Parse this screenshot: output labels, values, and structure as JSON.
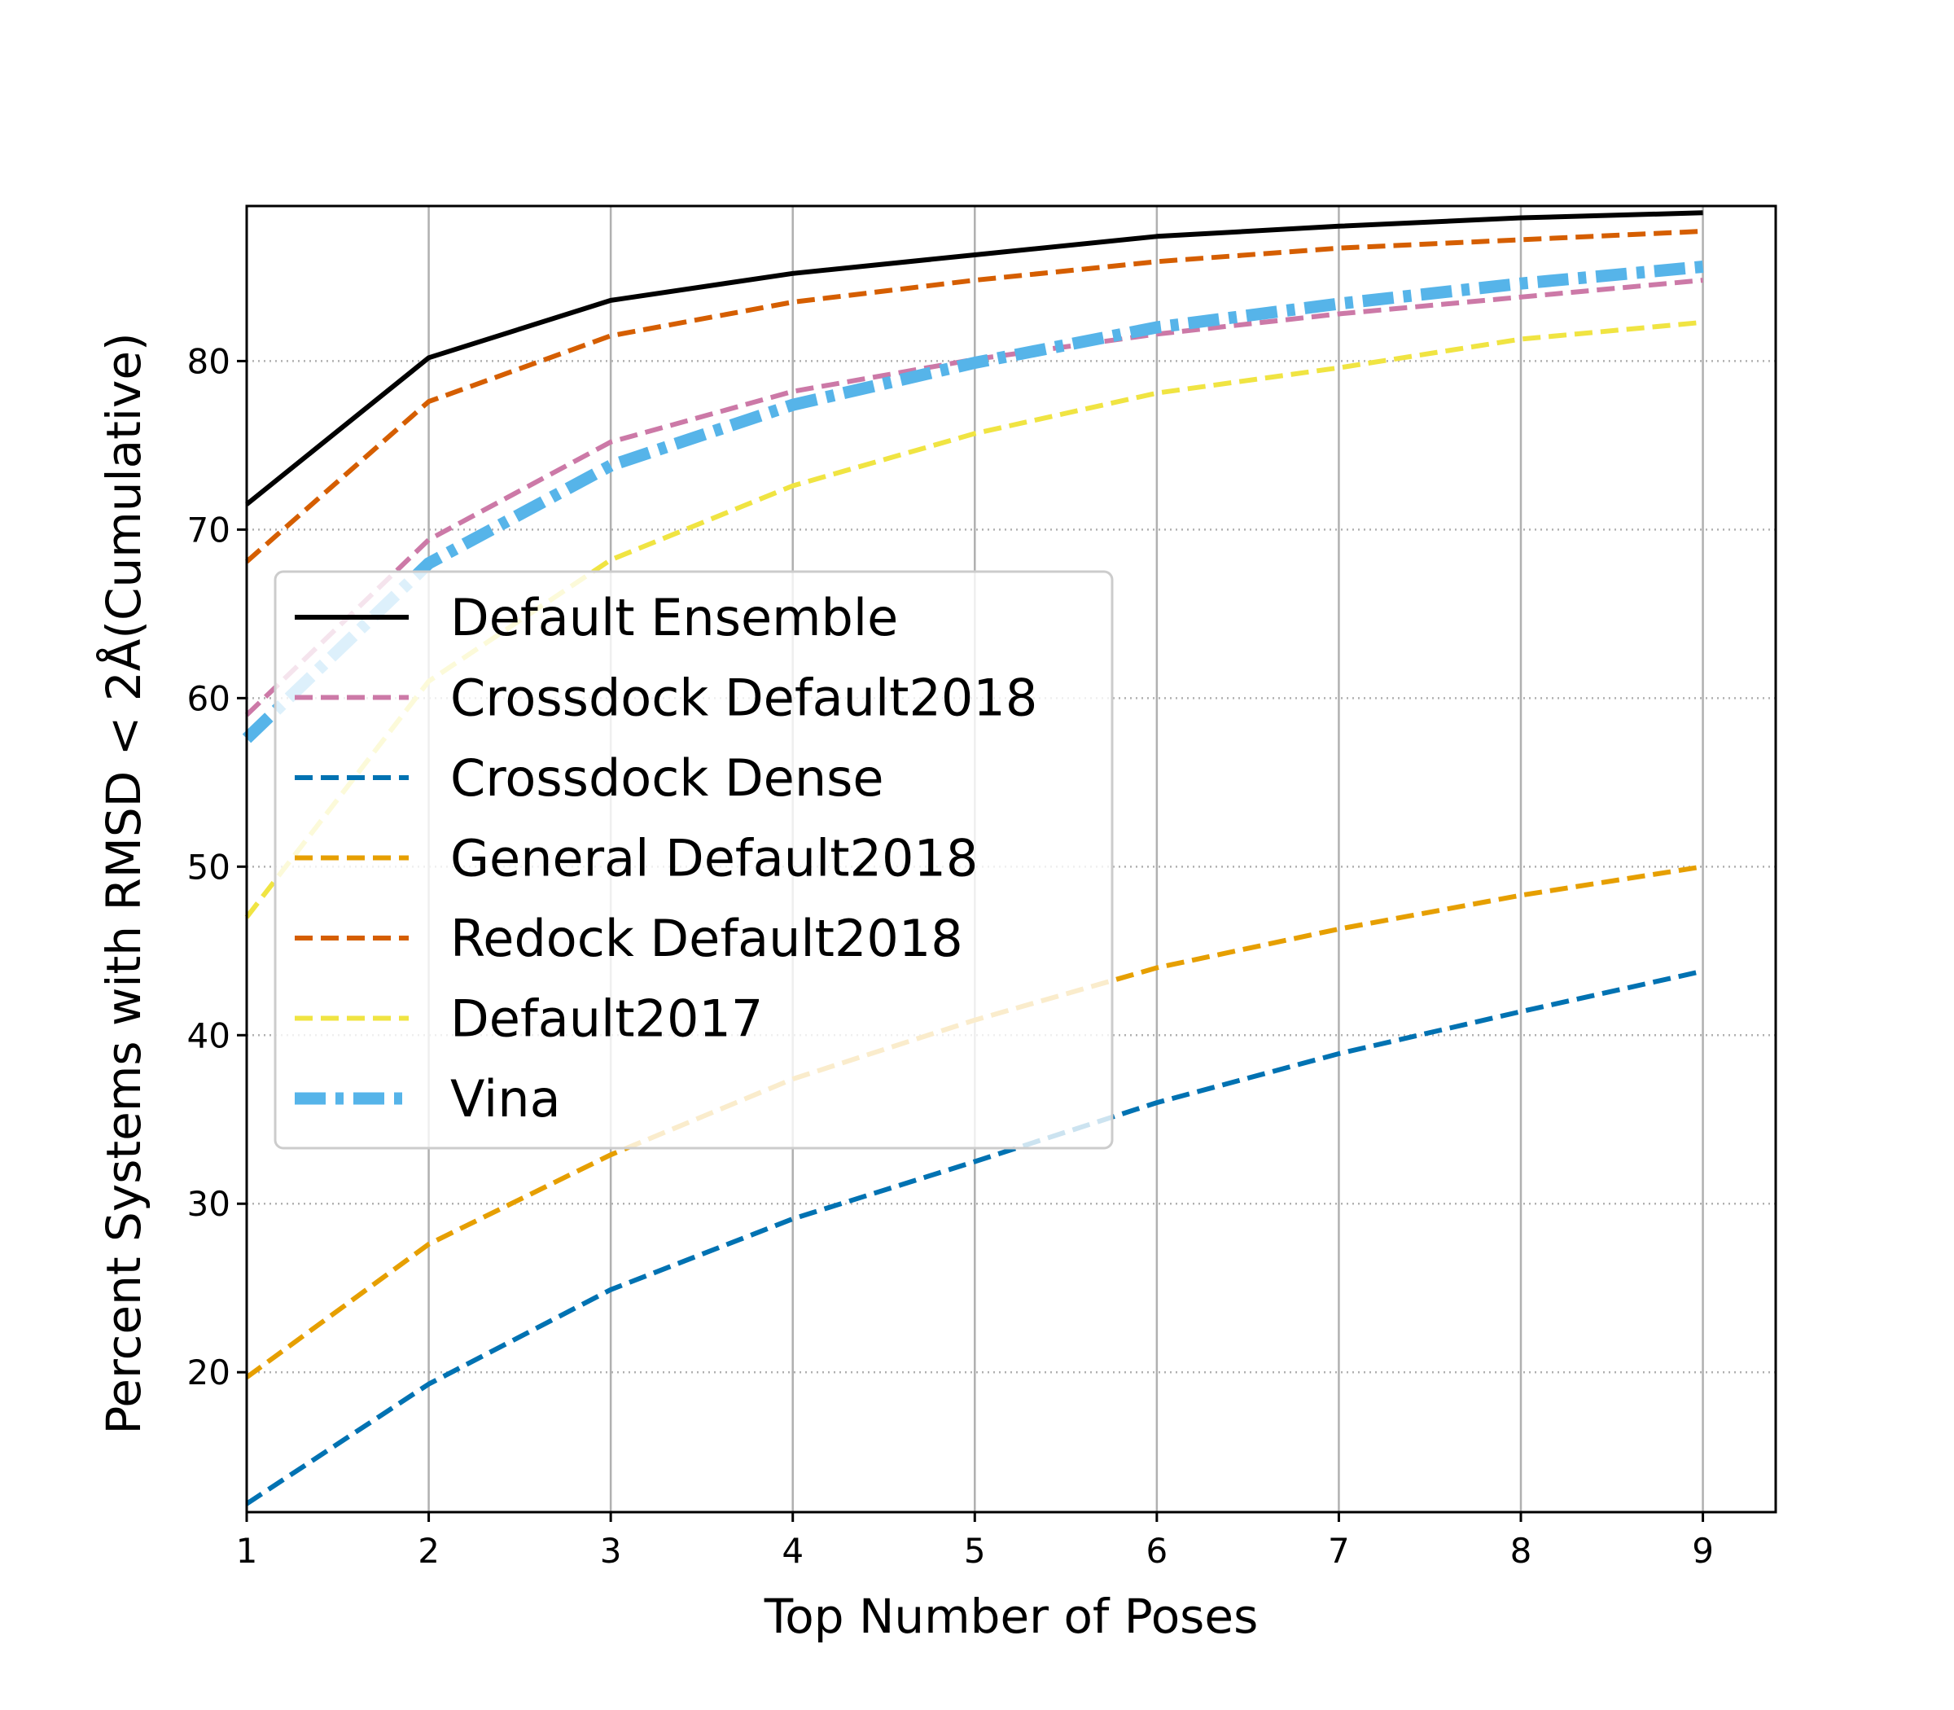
{
  "chart_data": {
    "type": "line",
    "title": "",
    "xlabel": "Top Number of Poses",
    "ylabel": "Percent Systems with RMSD < 2Å(Cumulative)",
    "x": [
      1,
      2,
      3,
      4,
      5,
      6,
      7,
      8,
      9
    ],
    "xlim": [
      1,
      9.4
    ],
    "ylim": [
      11.7,
      89.2
    ],
    "xticks": [
      "1",
      "2",
      "3",
      "4",
      "5",
      "6",
      "7",
      "8",
      "9"
    ],
    "yticks": [
      "20",
      "30",
      "40",
      "50",
      "60",
      "70",
      "80"
    ],
    "ytick_values": [
      20,
      30,
      40,
      50,
      60,
      70,
      80
    ],
    "grid": {
      "x": "solid",
      "y": "dotted"
    },
    "legend_position": "center-left",
    "series": [
      {
        "name": "Default Ensemble",
        "values": [
          71.5,
          80.2,
          83.6,
          85.2,
          86.3,
          87.4,
          88.0,
          88.5,
          88.8
        ],
        "color": "#000000",
        "style": "solid",
        "width": 6
      },
      {
        "name": "Crossdock Default2018",
        "values": [
          59.0,
          69.4,
          75.2,
          78.2,
          80.1,
          81.6,
          82.8,
          83.8,
          84.8
        ],
        "color": "#cc79a7",
        "style": "dashed",
        "width": 6
      },
      {
        "name": "Crossdock Dense",
        "values": [
          12.2,
          19.3,
          24.9,
          29.1,
          32.5,
          36.0,
          38.9,
          41.4,
          43.8
        ],
        "color": "#0072b2",
        "style": "dashed",
        "width": 6
      },
      {
        "name": "General Default2018",
        "values": [
          19.7,
          27.6,
          32.9,
          37.4,
          40.9,
          44.0,
          46.3,
          48.3,
          50.0
        ],
        "color": "#e69f00",
        "style": "dashed",
        "width": 6
      },
      {
        "name": "Redock Default2018",
        "values": [
          68.1,
          77.6,
          81.5,
          83.5,
          84.8,
          85.9,
          86.7,
          87.2,
          87.7
        ],
        "color": "#d55e00",
        "style": "dashed",
        "width": 6
      },
      {
        "name": "Default2017",
        "values": [
          47.0,
          61.0,
          68.2,
          72.6,
          75.7,
          78.1,
          79.6,
          81.3,
          82.3
        ],
        "color": "#f0e442",
        "style": "dashed",
        "width": 6
      },
      {
        "name": "Vina",
        "values": [
          57.6,
          68.0,
          73.8,
          77.4,
          79.9,
          82.0,
          83.4,
          84.6,
          85.6
        ],
        "color": "#56b4e9",
        "style": "dashdot",
        "width": 15
      }
    ]
  }
}
